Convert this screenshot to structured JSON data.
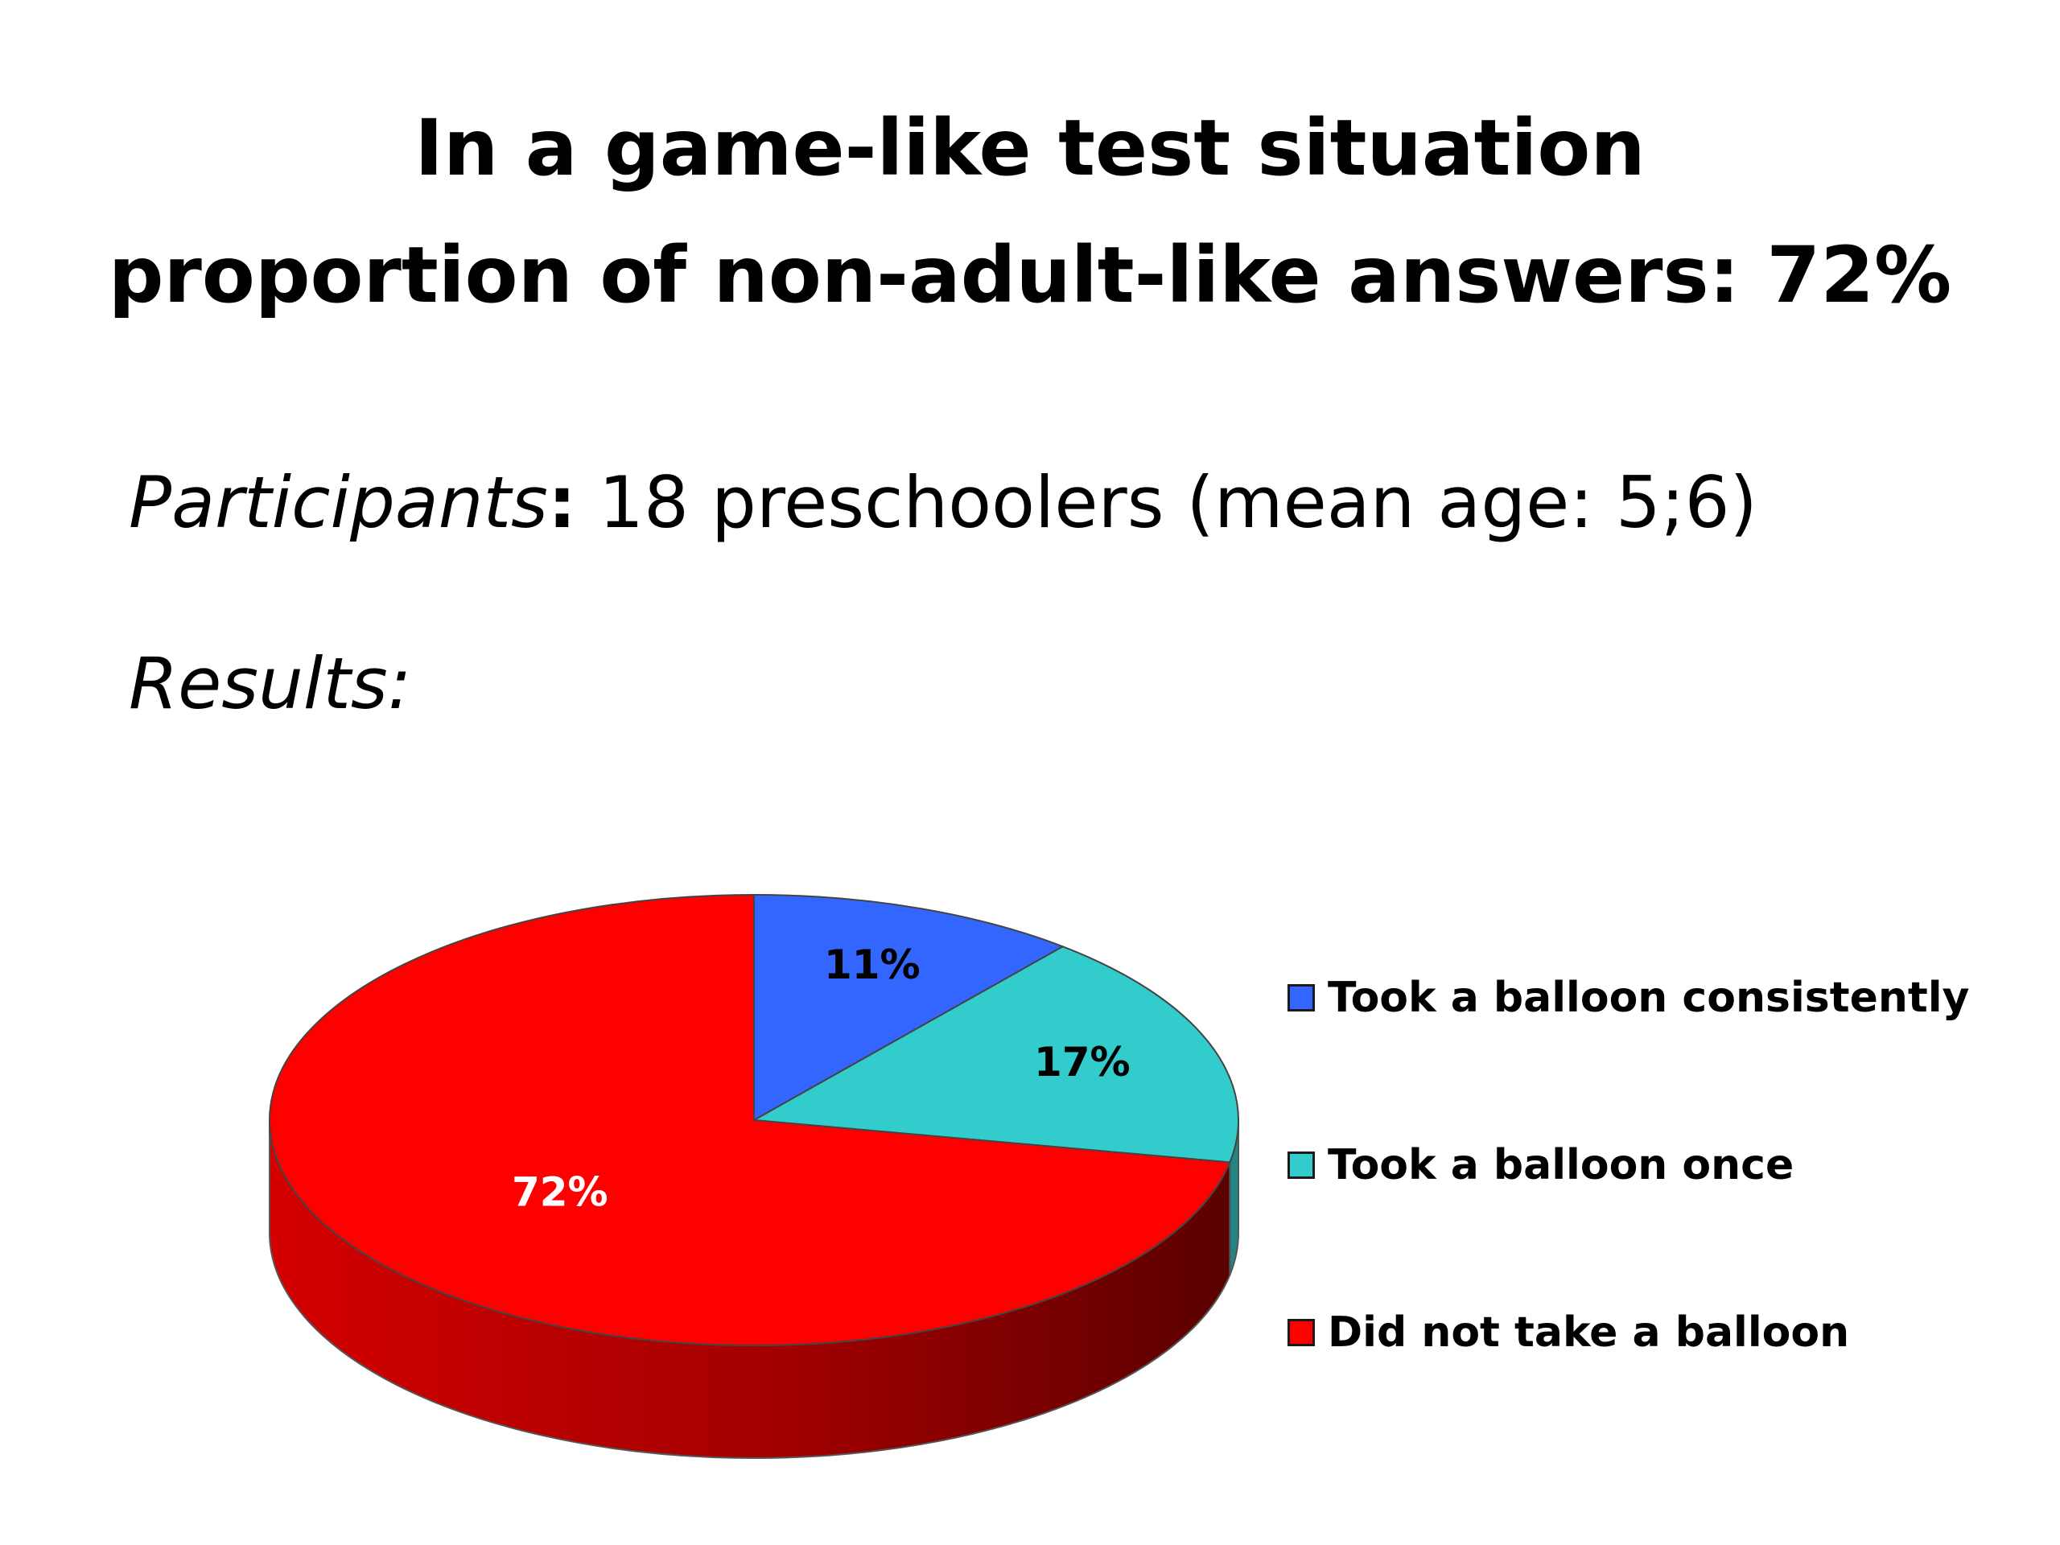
{
  "title": {
    "line1": "In a game-like test situation",
    "line2": "proportion of non-adult-like answers: 72%"
  },
  "participants": {
    "label": "Participants",
    "colon": ":",
    "text": " 18 preschoolers (mean age: 5;6)"
  },
  "results_label": "Results:",
  "chart_data": {
    "type": "pie",
    "title": "",
    "categories": [
      "Took a balloon consistently",
      "Took a balloon once",
      "Did not take a balloon"
    ],
    "values": [
      11,
      17,
      72
    ],
    "labels": [
      "11%",
      "17%",
      "72%"
    ],
    "colors": [
      "#3366ff",
      "#33cccc",
      "#ff0000"
    ],
    "label_colors": [
      "#000000",
      "#000000",
      "#ffffff"
    ],
    "style": "3d",
    "legend": "right"
  }
}
